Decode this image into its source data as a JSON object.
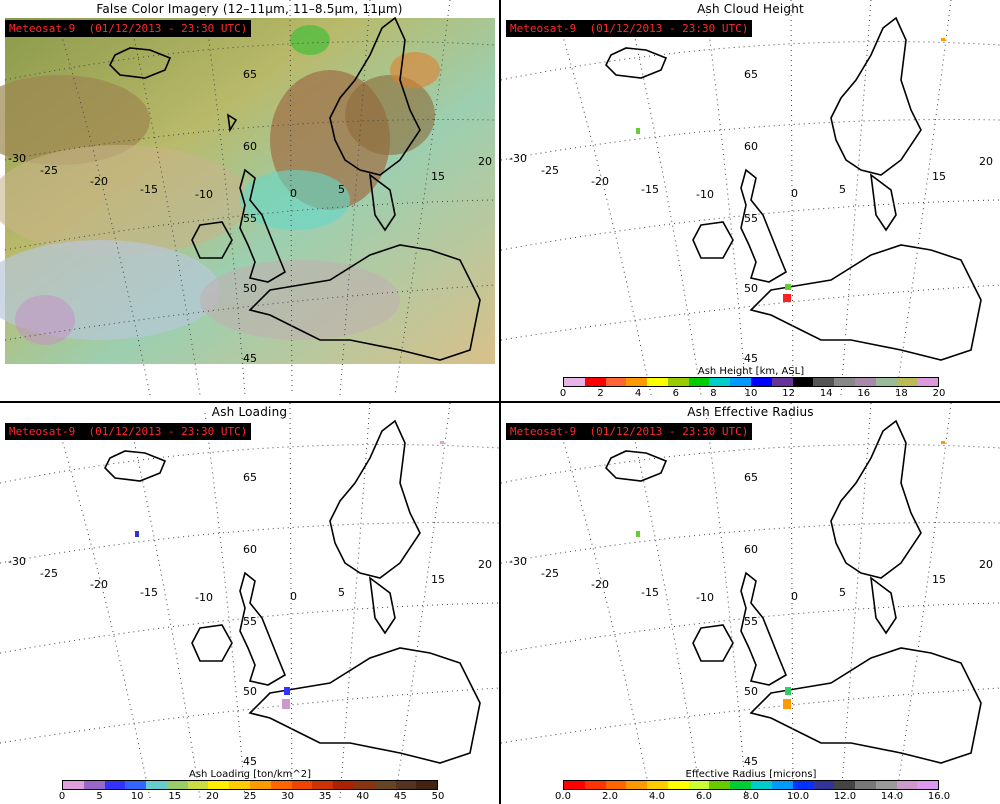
{
  "panels": {
    "false_color": {
      "title": "False Color Imagery (12–11μm, 11–8.5μm, 11μm)",
      "stamp": "Meteosat-9  (01/12/2013 - 23:30 UTC)"
    },
    "ash_height": {
      "title": "Ash Cloud Height",
      "stamp": "Meteosat-9  (01/12/2013 - 23:30 UTC)",
      "colorbar_label": "Ash Height [km, ASL]",
      "tick_labels": [
        "0",
        "2",
        "4",
        "6",
        "8",
        "10",
        "12",
        "14",
        "16",
        "18",
        "20"
      ],
      "colors": [
        "#e8b4e8",
        "#ff0000",
        "#ff6633",
        "#ff9900",
        "#ffff00",
        "#99cc00",
        "#00cc00",
        "#00cccc",
        "#0099ff",
        "#0000ff",
        "#663399",
        "#000000",
        "#555555",
        "#888888",
        "#aa88aa",
        "#99bb99",
        "#bbbb55",
        "#dd99dd"
      ]
    },
    "ash_loading": {
      "title": "Ash Loading",
      "stamp": "Meteosat-9  (01/12/2013 - 23:30 UTC)",
      "colorbar_label": "Ash Loading [ton/km^2]",
      "tick_labels": [
        "0",
        "5",
        "10",
        "15",
        "20",
        "25",
        "30",
        "35",
        "40",
        "45",
        "50"
      ],
      "colors": [
        "#dda0dd",
        "#9966cc",
        "#3333ff",
        "#3366ff",
        "#66cccc",
        "#99cc66",
        "#ccdd44",
        "#ffee00",
        "#ffcc00",
        "#ff9900",
        "#ff6600",
        "#ee4400",
        "#cc3300",
        "#aa2200",
        "#883311",
        "#664422",
        "#553322",
        "#442211"
      ]
    },
    "ash_radius": {
      "title": "Ash Effective Radius",
      "stamp": "Meteosat-9  (01/12/2013 - 23:30 UTC)",
      "colorbar_label": "Effective Radius [microns]",
      "tick_labels": [
        "0.0",
        "2.0",
        "4.0",
        "6.0",
        "8.0",
        "10.0",
        "12.0",
        "14.0",
        "16.0"
      ],
      "colors": [
        "#ff0000",
        "#ff3300",
        "#ff6600",
        "#ff9900",
        "#ffcc00",
        "#ffff00",
        "#ccff33",
        "#66cc00",
        "#00cc33",
        "#00cccc",
        "#0099ff",
        "#0033ff",
        "#333399",
        "#444444",
        "#777777",
        "#999999",
        "#cc99cc",
        "#dd99ee"
      ]
    }
  },
  "map_labels": {
    "lon": [
      "-30",
      "-25",
      "-20",
      "-15",
      "-10",
      "0",
      "5",
      "15",
      "20"
    ],
    "lat": [
      "65",
      "60",
      "55",
      "50",
      "45"
    ]
  }
}
